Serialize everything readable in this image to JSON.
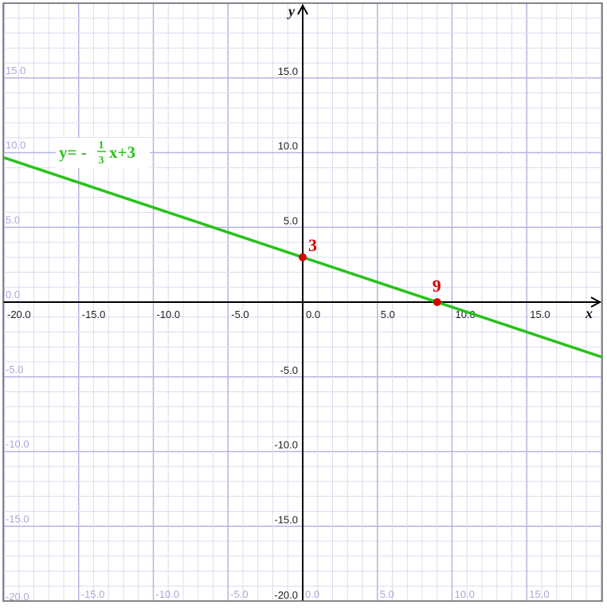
{
  "chart_data": {
    "type": "line",
    "xlim": [
      -20,
      20
    ],
    "ylim": [
      -20,
      20
    ],
    "grid": true,
    "xlabel": "x",
    "ylabel": "y",
    "x_ticks": [
      "-20.0",
      "-15.0",
      "-10.0",
      "-5.0",
      "0.0",
      "5.0",
      "10.0",
      "15.0"
    ],
    "y_ticks": [
      "15.0",
      "10.0",
      "5.0",
      "-5.0",
      "-10.0",
      "-15.0",
      "-20.0"
    ],
    "ghost_y_ticks": [
      "15.0",
      "10.0",
      "5.0",
      "0.0",
      "-5.0",
      "-10.0",
      "-15.0",
      "-20.0"
    ],
    "ghost_x_ticks": [
      "-15.0",
      "-10.0",
      "-5.0",
      "0.0",
      "5.0",
      "10.0",
      "15.0"
    ],
    "series": [
      {
        "name": "y= - 1/3 x+3",
        "slope": -0.3333,
        "intercept": 3,
        "color": "#27c21b"
      }
    ],
    "equation_label": {
      "prefix": "y= -",
      "numerator": "1",
      "denominator": "3",
      "suffix": "x+3"
    },
    "points": [
      {
        "x": 0,
        "y": 3,
        "label": "3",
        "color": "#d40000"
      },
      {
        "x": 9,
        "y": 0,
        "label": "9",
        "color": "#d40000"
      }
    ]
  }
}
